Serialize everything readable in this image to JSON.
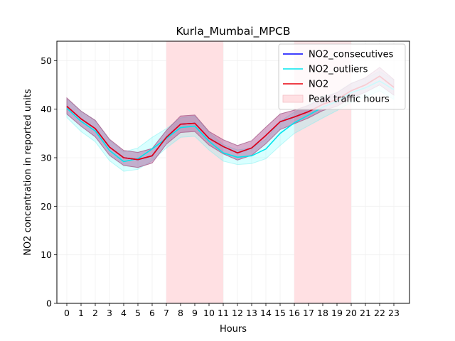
{
  "chart_data": {
    "type": "line",
    "title": "Kurla_Mumbai_MPCB",
    "xlabel": "Hours",
    "ylabel": "NO2 concentration in reported units",
    "xlim": [
      -0.7,
      24.1
    ],
    "ylim": [
      0,
      54
    ],
    "x_ticks": [
      0,
      1,
      2,
      3,
      4,
      5,
      6,
      7,
      8,
      9,
      10,
      11,
      12,
      13,
      14,
      15,
      16,
      17,
      18,
      19,
      20,
      21,
      22,
      23
    ],
    "y_ticks": [
      0,
      10,
      20,
      30,
      40,
      50
    ],
    "grid": true,
    "legend_position": "top-right",
    "x": [
      0,
      1,
      2,
      3,
      4,
      5,
      6,
      7,
      8,
      9,
      10,
      11,
      12,
      13,
      14,
      15,
      16,
      17,
      18,
      19,
      20,
      21,
      22,
      23
    ],
    "series": [
      {
        "name": "NO2_consecutives",
        "color": "#0000ff",
        "values": [
          40.6,
          38.0,
          36.0,
          32.2,
          30.0,
          29.6,
          30.4,
          34.2,
          36.9,
          37.1,
          34.0,
          32.3,
          31.0,
          32.0,
          34.6,
          37.4,
          38.4,
          39.5,
          41.0,
          42.0,
          43.8,
          45.0,
          46.8,
          44.5
        ],
        "band_low": [
          39.0,
          36.5,
          34.3,
          30.5,
          28.4,
          28.0,
          28.9,
          32.8,
          35.2,
          35.4,
          32.6,
          30.8,
          29.5,
          30.5,
          32.9,
          35.8,
          37.0,
          38.2,
          39.7,
          40.6,
          42.3,
          43.5,
          45.0,
          42.9
        ],
        "band_high": [
          42.3,
          39.6,
          37.7,
          33.8,
          31.5,
          31.1,
          31.9,
          35.6,
          38.6,
          38.8,
          35.4,
          33.7,
          32.5,
          33.5,
          36.3,
          39.0,
          39.8,
          40.8,
          42.3,
          43.4,
          45.3,
          46.5,
          48.6,
          46.1
        ]
      },
      {
        "name": "NO2_outliers",
        "color": "#00e5ee",
        "values": [
          40.2,
          37.5,
          35.5,
          31.5,
          29.2,
          29.8,
          31.8,
          34.0,
          36.2,
          36.5,
          33.4,
          31.0,
          30.1,
          30.4,
          31.8,
          35.0,
          37.2,
          38.8,
          40.4,
          41.6,
          43.4,
          44.4,
          45.8,
          44.0
        ],
        "band_low": [
          38.3,
          35.4,
          33.3,
          29.4,
          27.2,
          27.6,
          29.4,
          32.0,
          34.2,
          34.4,
          31.6,
          29.3,
          28.6,
          28.8,
          29.8,
          32.5,
          35.0,
          36.6,
          38.2,
          39.7,
          41.4,
          42.5,
          43.8,
          42.0
        ],
        "band_high": [
          42.1,
          39.6,
          37.7,
          33.6,
          31.2,
          32.0,
          34.2,
          36.0,
          38.2,
          38.6,
          35.2,
          32.7,
          31.6,
          32.0,
          33.8,
          37.5,
          39.4,
          41.0,
          42.6,
          43.5,
          45.4,
          46.3,
          47.8,
          46.0
        ]
      },
      {
        "name": "NO2",
        "color": "#e8000b",
        "values": [
          40.6,
          38.0,
          36.0,
          32.2,
          30.0,
          29.6,
          30.4,
          34.2,
          36.9,
          37.1,
          34.0,
          32.3,
          31.0,
          32.0,
          34.6,
          37.4,
          38.4,
          39.5,
          41.0,
          42.0,
          43.8,
          45.0,
          46.8,
          44.5
        ],
        "band_low": [
          39.0,
          36.5,
          34.3,
          30.5,
          28.4,
          28.0,
          28.9,
          32.8,
          35.2,
          35.4,
          32.6,
          30.8,
          29.5,
          30.5,
          32.9,
          35.8,
          37.0,
          38.2,
          39.7,
          40.6,
          42.3,
          43.5,
          45.0,
          42.9
        ],
        "band_high": [
          42.3,
          39.6,
          37.7,
          33.8,
          31.5,
          31.1,
          31.9,
          35.6,
          38.6,
          38.8,
          35.4,
          33.7,
          32.5,
          33.5,
          36.3,
          39.0,
          39.8,
          40.8,
          42.3,
          43.4,
          45.3,
          46.5,
          48.6,
          46.1
        ]
      }
    ],
    "shaded_regions": [
      {
        "x0": 7,
        "x1": 11
      },
      {
        "x0": 16,
        "x1": 20
      }
    ],
    "shaded_label": "Peak traffic hours",
    "shaded_color": "#ffe0e3"
  }
}
